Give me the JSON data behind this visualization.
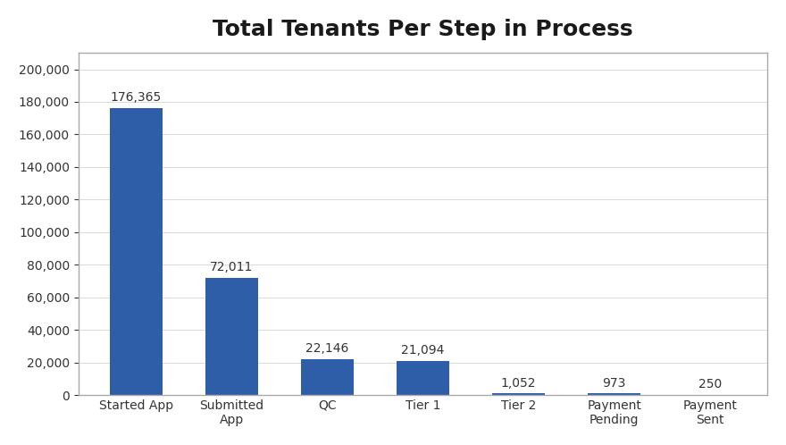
{
  "title": "Total Tenants Per Step in Process",
  "categories": [
    "Started App",
    "Submitted\nApp",
    "QC",
    "Tier 1",
    "Tier 2",
    "Payment\nPending",
    "Payment\nSent"
  ],
  "values": [
    176365,
    72011,
    22146,
    21094,
    1052,
    973,
    250
  ],
  "labels": [
    "176,365",
    "72,011",
    "22,146",
    "21,094",
    "1,052",
    "973",
    "250"
  ],
  "bar_color": "#2E5EA8",
  "background_color": "#FFFFFF",
  "ylim": [
    0,
    210000
  ],
  "yticks": [
    0,
    20000,
    40000,
    60000,
    80000,
    100000,
    120000,
    140000,
    160000,
    180000,
    200000
  ],
  "title_fontsize": 18,
  "label_fontsize": 10,
  "tick_fontsize": 10,
  "border_color": "#AAAAAA"
}
